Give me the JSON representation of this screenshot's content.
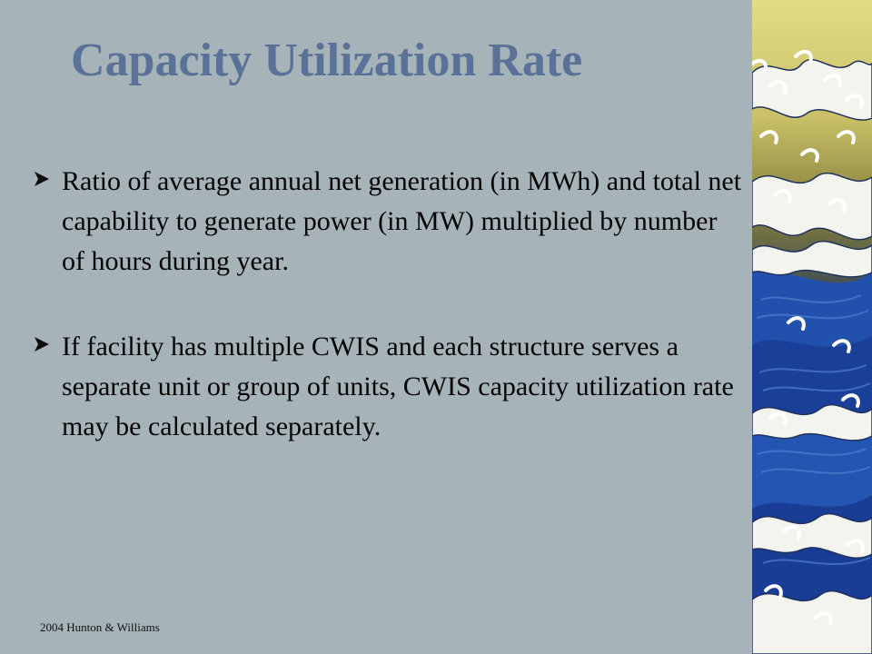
{
  "slide": {
    "title": "Capacity Utilization Rate",
    "bullets": [
      "Ratio of average annual net generation (in MWh) and total net capability to generate power (in MW) multiplied by number of hours during year.",
      "If facility has multiple CWIS and each structure serves a separate unit or group of units, CWIS capacity utilization rate may be calculated separately."
    ],
    "bullet_icon": "arrow-right-icon",
    "footer": "2004 Hunton & Williams"
  },
  "colors": {
    "background": "#a6b3b8",
    "title": "#5a7198",
    "text": "#050505",
    "wave_blue": "#1f43a8",
    "wave_sky": "#d9d37a"
  }
}
